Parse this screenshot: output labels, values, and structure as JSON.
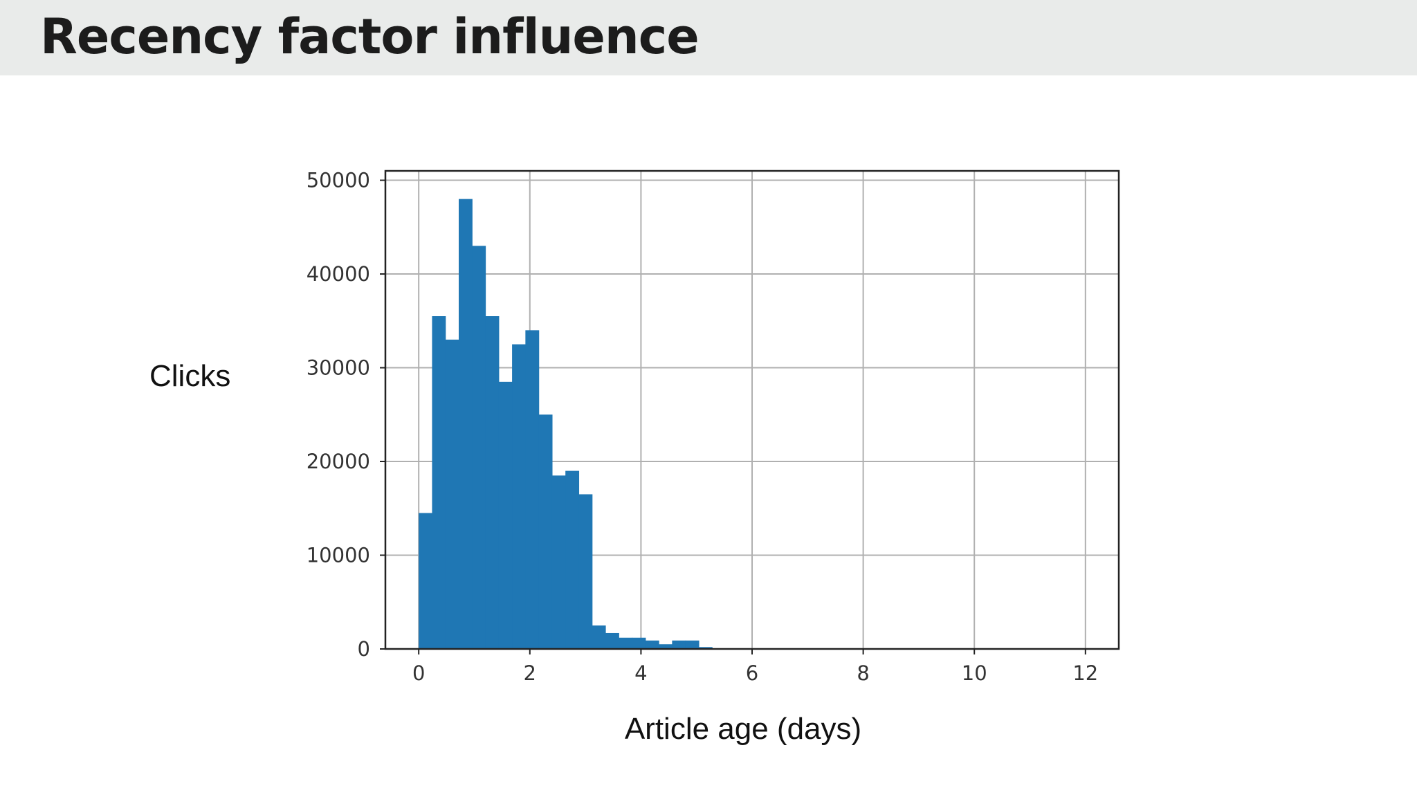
{
  "slide": {
    "title": "Recency factor influence"
  },
  "chart_data": {
    "type": "bar",
    "histogram": true,
    "bin_width": 0.24,
    "bin_start": 0,
    "x_bin_edges_start": [
      0,
      0.24,
      0.48,
      0.72,
      0.96,
      1.2,
      1.44,
      1.68,
      1.92,
      2.16,
      2.4,
      2.64,
      2.88,
      3.12,
      3.36,
      3.6,
      3.84,
      4.08,
      4.32,
      4.56,
      4.8,
      5.04
    ],
    "values": [
      14500,
      35500,
      33000,
      48000,
      43000,
      35500,
      28500,
      32500,
      34000,
      25000,
      18500,
      19000,
      16500,
      2500,
      1700,
      1200,
      1200,
      900,
      500,
      900,
      900,
      200
    ],
    "xlabel": "Article age (days)",
    "ylabel": "Clicks",
    "xlim": [
      -0.6,
      12.6
    ],
    "ylim": [
      0,
      51000
    ],
    "x_ticks": [
      "0",
      "2",
      "4",
      "6",
      "8",
      "10",
      "12"
    ],
    "y_ticks": [
      "0",
      "10000",
      "20000",
      "30000",
      "40000",
      "50000"
    ],
    "grid": true,
    "colors": {
      "bar": "#1f77b4",
      "grid": "#b0b0b0",
      "frame": "#222222"
    }
  }
}
